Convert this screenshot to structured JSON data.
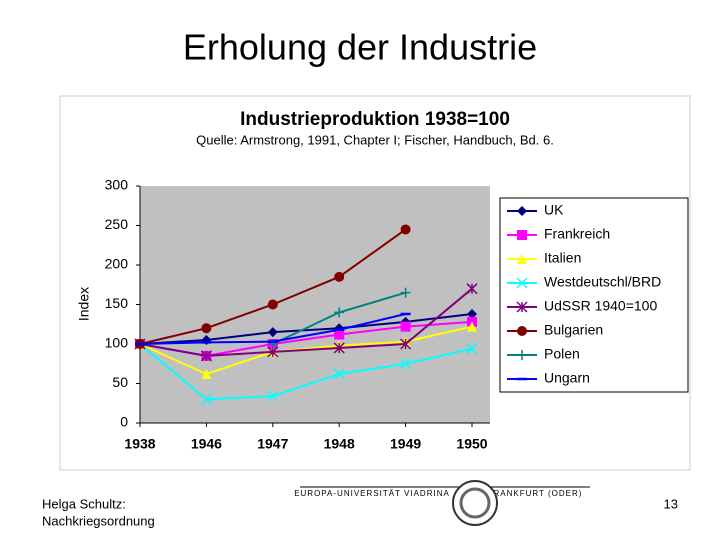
{
  "slide": {
    "title": "Erholung der Industrie",
    "author": "Helga Schultz:",
    "subject": "Nachkriegsordnung",
    "page": "13",
    "logo_left": "EUROPA-UNIVERSITÄT VIADRINA",
    "logo_right": "FRANKFURT (ODER)"
  },
  "chart_data": {
    "type": "line",
    "title": "Industrieproduktion 1938=100",
    "subtitle": "Quelle: Armstrong, 1991, Chapter I; Fischer, Handbuch, Bd. 6.",
    "y_label": "Index",
    "categories": [
      "1938",
      "1946",
      "1947",
      "1948",
      "1949",
      "1950"
    ],
    "ylim": [
      0,
      300
    ],
    "yticks": [
      0,
      50,
      100,
      150,
      200,
      250,
      300
    ],
    "grid": false,
    "legend": "right",
    "series": [
      {
        "name": "UK",
        "color": "#000080",
        "marker": "diamond",
        "values": [
          100,
          105,
          115,
          120,
          128,
          138
        ]
      },
      {
        "name": "Frankreich",
        "color": "#ff00ff",
        "marker": "square",
        "values": [
          100,
          85,
          100,
          112,
          122,
          128
        ]
      },
      {
        "name": "Italien",
        "color": "#ffff00",
        "marker": "triangle",
        "values": [
          100,
          62,
          90,
          98,
          103,
          122
        ]
      },
      {
        "name": "Westdeutschl/BRD",
        "color": "#00ffff",
        "marker": "x",
        "values": [
          100,
          30,
          34,
          62,
          75,
          94
        ]
      },
      {
        "name": "UdSSR 1940=100",
        "color": "#800080",
        "marker": "star",
        "values": [
          100,
          85,
          90,
          95,
          100,
          170
        ]
      },
      {
        "name": "Bulgarien",
        "color": "#800000",
        "marker": "circle",
        "values": [
          100,
          120,
          150,
          185,
          245,
          null
        ]
      },
      {
        "name": "Polen",
        "color": "#008080",
        "marker": "plus",
        "values": [
          null,
          null,
          100,
          140,
          165,
          null
        ]
      },
      {
        "name": "Ungarn",
        "color": "#0000ff",
        "marker": "dash",
        "values": [
          100,
          102,
          103,
          118,
          138,
          null
        ]
      }
    ]
  }
}
